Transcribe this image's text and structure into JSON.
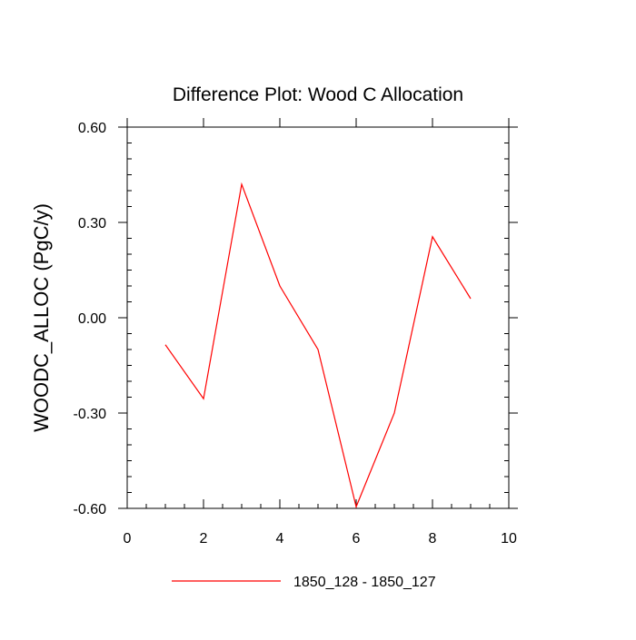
{
  "chart_data": {
    "type": "line",
    "title": "Difference Plot: Wood C Allocation",
    "xlabel": "",
    "ylabel": "WOODC_ALLOC  (PgC/y)",
    "xlim": [
      0,
      10
    ],
    "ylim": [
      -0.6,
      0.6
    ],
    "x_ticks": [
      0,
      2,
      4,
      6,
      8,
      10
    ],
    "x_tick_labels": [
      "0",
      "2",
      "4",
      "6",
      "8",
      "10"
    ],
    "y_ticks": [
      0.6,
      0.3,
      0.0,
      -0.3,
      -0.6
    ],
    "y_tick_labels": [
      "0.60",
      "0.30",
      "0.00",
      "-0.30",
      "-0.60"
    ],
    "grid": false,
    "legend_position": "bottom",
    "series": [
      {
        "name": "1850_128 - 1850_127",
        "color": "#ff0000",
        "x": [
          1,
          2,
          3,
          4,
          5,
          6,
          7,
          8,
          9
        ],
        "y": [
          -0.085,
          -0.255,
          0.42,
          0.1,
          -0.1,
          -0.595,
          -0.3,
          0.255,
          0.06
        ]
      }
    ]
  }
}
